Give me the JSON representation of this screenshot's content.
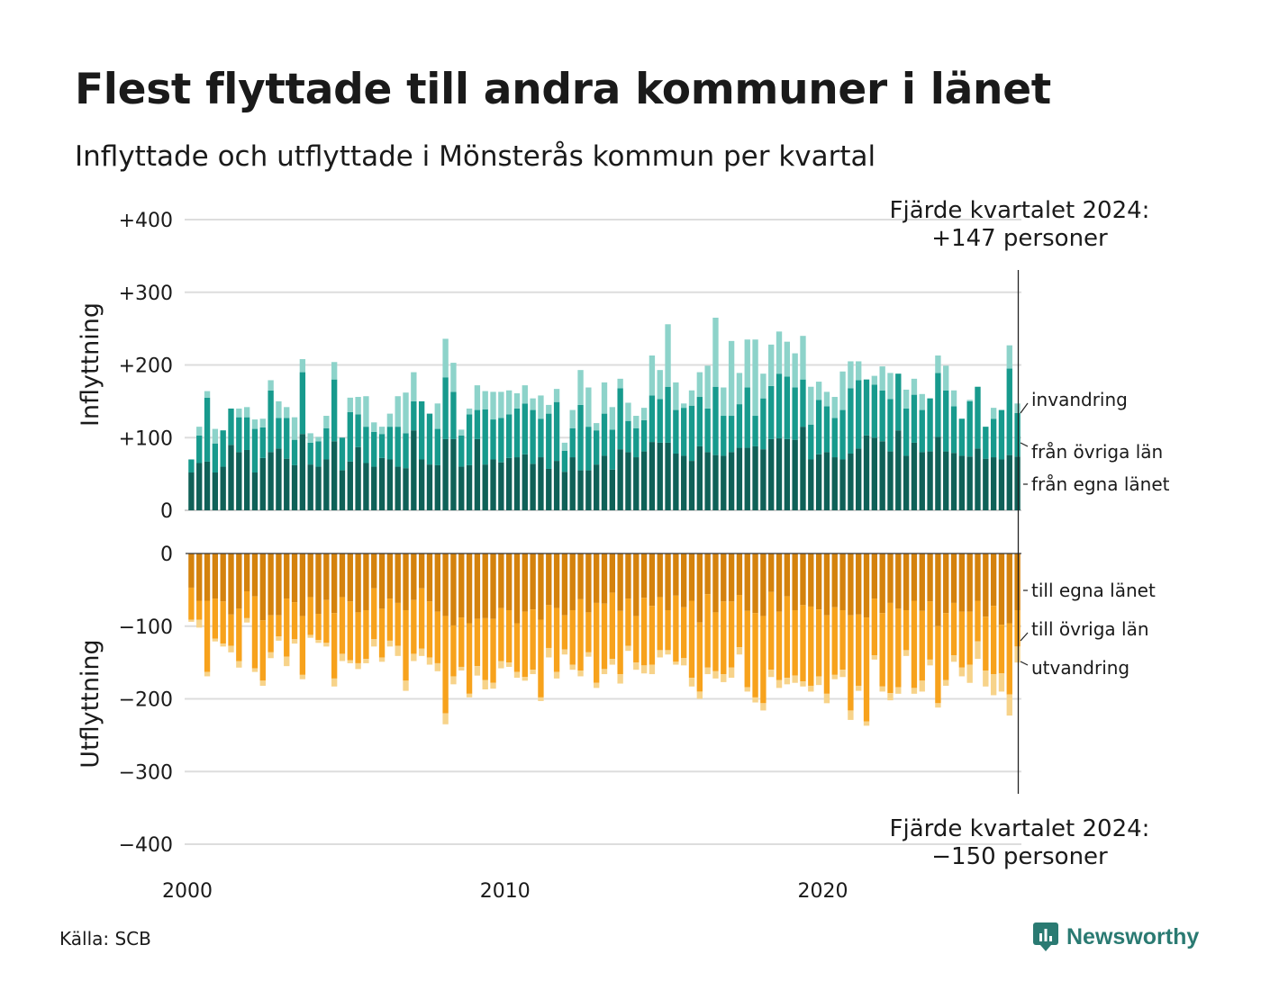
{
  "title": "Flest flyttade till andra kommuner i länet",
  "subtitle": "Inflyttade och utflyttade i Mönsterås kommun per kvartal",
  "source": "Källa: SCB",
  "brand": "Newsworthy",
  "colors": {
    "in_own": "#0f6158",
    "in_other": "#179a8d",
    "in_imm": "#8dd3ca",
    "out_own": "#d4820d",
    "out_other": "#f7a21c",
    "out_emi": "#f7d38a",
    "grid": "#dddddd",
    "brand": "#2a7a72"
  },
  "chart_data": {
    "type": "bar",
    "stacked": true,
    "x_start": 2000,
    "x_step": 0.25,
    "xticks": [
      "2000",
      "2010",
      "2020"
    ],
    "panels": [
      {
        "label": "Inflyttning",
        "yticks": [
          "+400",
          "+300",
          "+200",
          "+100",
          "0"
        ],
        "ylim": [
          0,
          400
        ],
        "series": [
          {
            "name": "från egna länet",
            "color": "#0f6158",
            "values": [
              52,
              65,
              67,
              52,
              60,
              90,
              80,
              83,
              52,
              72,
              80,
              85,
              71,
              62,
              105,
              63,
              60,
              70,
              95,
              55,
              67,
              87,
              65,
              60,
              72,
              70,
              60,
              58,
              110,
              70,
              63,
              62,
              98,
              98,
              60,
              62,
              98,
              63,
              70,
              66,
              72,
              73,
              77,
              64,
              73,
              57,
              68,
              53,
              73,
              55,
              55,
              63,
              75,
              56,
              84,
              80,
              73,
              81,
              94,
              93,
              93,
              78,
              75,
              68,
              88,
              80,
              76,
              75,
              80,
              86,
              86,
              88,
              84,
              98,
              99,
              98,
              97,
              115,
              70,
              77,
              80,
              73,
              70,
              78,
              85,
              103,
              100,
              95,
              81,
              110,
              75,
              93,
              80,
              81,
              101,
              81,
              79,
              75,
              74,
              85,
              71,
              73,
              70,
              76,
              74
            ]
          },
          {
            "name": "från övriga län",
            "color": "#179a8d",
            "values": [
              18,
              38,
              88,
              40,
              50,
              50,
              48,
              45,
              60,
              42,
              85,
              42,
              56,
              35,
              85,
              30,
              35,
              43,
              85,
              45,
              68,
              45,
              50,
              48,
              33,
              45,
              55,
              48,
              40,
              80,
              70,
              50,
              85,
              65,
              43,
              70,
              40,
              76,
              55,
              61,
              60,
              67,
              70,
              74,
              53,
              76,
              81,
              29,
              40,
              90,
              60,
              47,
              58,
              55,
              84,
              43,
              40,
              43,
              64,
              60,
              77,
              60,
              66,
              76,
              68,
              60,
              94,
              55,
              50,
              60,
              83,
              42,
              70,
              73,
              89,
              86,
              72,
              65,
              48,
              75,
              63,
              54,
              68,
              90,
              94,
              77,
              73,
              70,
              72,
              78,
              65,
              66,
              58,
              73,
              88,
              84,
              64,
              51,
              76,
              85,
              44,
              53,
              68,
              119,
              60
            ]
          },
          {
            "name": "invandring",
            "color": "#8dd3ca",
            "values": [
              0,
              12,
              9,
              20,
              0,
              0,
              12,
              14,
              13,
              12,
              14,
              23,
              15,
              31,
              18,
              13,
              6,
              17,
              24,
              0,
              20,
              24,
              42,
              13,
              10,
              18,
              42,
              56,
              40,
              0,
              0,
              35,
              53,
              40,
              8,
              8,
              34,
              25,
              38,
              36,
              33,
              21,
              25,
              16,
              32,
              12,
              18,
              11,
              25,
              48,
              54,
              10,
              43,
              31,
              13,
              25,
              17,
              17,
              55,
              40,
              86,
              38,
              6,
              21,
              34,
              59,
              95,
              39,
              103,
              43,
              66,
              105,
              34,
              57,
              58,
              48,
              47,
              60,
              52,
              25,
              20,
              29,
              53,
              37,
              26,
              0,
              12,
              33,
              36,
              0,
              26,
              22,
              22,
              0,
              24,
              34,
              22,
              0,
              2,
              0,
              0,
              15,
              0,
              32,
              13
            ]
          }
        ]
      },
      {
        "label": "Utflyttning",
        "yticks": [
          "0",
          "−100",
          "−200",
          "−300",
          "−400"
        ],
        "ylim": [
          -400,
          0
        ],
        "series": [
          {
            "name": "till egna länet",
            "color": "#d4820d",
            "values": [
              -47,
              -65,
              -65,
              -62,
              -66,
              -84,
              -76,
              -52,
              -59,
              -92,
              -85,
              -85,
              -62,
              -67,
              -86,
              -60,
              -83,
              -64,
              -82,
              -60,
              -66,
              -81,
              -78,
              -48,
              -76,
              -62,
              -68,
              -78,
              -64,
              -48,
              -66,
              -80,
              -86,
              -99,
              -88,
              -96,
              -90,
              -89,
              -90,
              -75,
              -78,
              -96,
              -80,
              -77,
              -91,
              -71,
              -75,
              -85,
              -78,
              -63,
              -81,
              -68,
              -69,
              -54,
              -79,
              -62,
              -86,
              -61,
              -72,
              -60,
              -78,
              -58,
              -74,
              -65,
              -95,
              -56,
              -81,
              -66,
              -66,
              -57,
              -79,
              -82,
              -86,
              -53,
              -80,
              -59,
              -78,
              -71,
              -73,
              -77,
              -85,
              -74,
              -78,
              -85,
              -84,
              -88,
              -62,
              -82,
              -68,
              -76,
              -78,
              -65,
              -79,
              -66,
              -100,
              -82,
              -68,
              -80,
              -80,
              -65,
              -87,
              -72,
              -98,
              -96,
              -78
            ]
          },
          {
            "name": "till övriga län",
            "color": "#f7a21c",
            "values": [
              -44,
              -26,
              -98,
              -55,
              -58,
              -43,
              -72,
              -37,
              -99,
              -83,
              -51,
              -29,
              -80,
              -51,
              -81,
              -52,
              -36,
              -59,
              -90,
              -78,
              -81,
              -70,
              -67,
              -70,
              -67,
              -58,
              -59,
              -97,
              -74,
              -83,
              -77,
              -71,
              -134,
              -70,
              -68,
              -97,
              -65,
              -85,
              -88,
              -73,
              -72,
              -67,
              -90,
              -83,
              -107,
              -59,
              -88,
              -47,
              -75,
              -98,
              -55,
              -110,
              -90,
              -91,
              -87,
              -65,
              -64,
              -93,
              -81,
              -73,
              -55,
              -91,
              -70,
              -106,
              -95,
              -101,
              -81,
              -100,
              -91,
              -72,
              -105,
              -116,
              -120,
              -107,
              -94,
              -112,
              -90,
              -105,
              -109,
              -92,
              -108,
              -93,
              -82,
              -131,
              -98,
              -143,
              -78,
              -101,
              -124,
              -108,
              -55,
              -120,
              -96,
              -80,
              -106,
              -92,
              -72,
              -77,
              -73,
              -56,
              -74,
              -94,
              -67,
              -98,
              -50
            ]
          },
          {
            "name": "utvandring",
            "color": "#f7d38a",
            "values": [
              -3,
              -11,
              -6,
              -4,
              -4,
              -9,
              -9,
              -6,
              -5,
              -7,
              -8,
              -6,
              -13,
              -6,
              -6,
              -4,
              -4,
              -5,
              -11,
              -10,
              -4,
              -8,
              -6,
              -10,
              -6,
              -8,
              -14,
              -14,
              -10,
              -10,
              -10,
              -11,
              -15,
              -11,
              -5,
              -5,
              -13,
              -13,
              -8,
              -10,
              -6,
              -8,
              -5,
              -6,
              -5,
              -13,
              -9,
              -7,
              -7,
              -8,
              -6,
              -7,
              -7,
              -8,
              -13,
              -7,
              -10,
              -11,
              -13,
              -10,
              -6,
              -4,
              -10,
              -12,
              -10,
              -9,
              -10,
              -11,
              -14,
              -10,
              -6,
              -7,
              -10,
              -10,
              -11,
              -9,
              -10,
              -7,
              -8,
              -12,
              -13,
              -6,
              -10,
              -13,
              -7,
              -6,
              -6,
              -7,
              -10,
              -9,
              -8,
              -8,
              -15,
              -8,
              -6,
              -8,
              -9,
              -12,
              -25,
              -24,
              -22,
              -29,
              -25,
              -29,
              -22
            ]
          }
        ]
      }
    ],
    "callouts": {
      "top": [
        "Fjärde kvartalet 2024:",
        "+147 personer"
      ],
      "bottom": [
        "Fjärde kvartalet 2024:",
        "−150 personer"
      ]
    }
  }
}
